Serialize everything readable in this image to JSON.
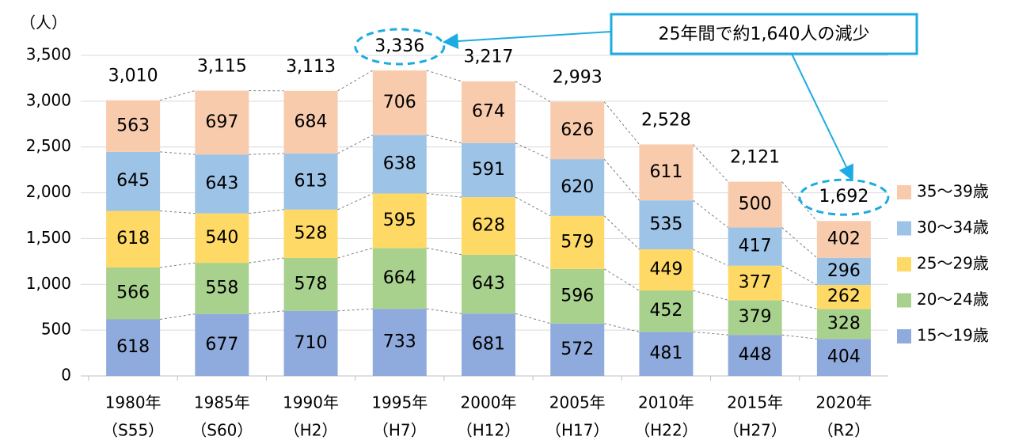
{
  "chart_data": {
    "type": "stacked_bar",
    "y_axis_label": "（人）",
    "annotation": "25年間で約1,640人の減少",
    "categories": [
      [
        "1980年",
        "（S55）"
      ],
      [
        "1985年",
        "（S60）"
      ],
      [
        "1990年",
        "（H2）"
      ],
      [
        "1995年",
        "（H7）"
      ],
      [
        "2000年",
        "（H12）"
      ],
      [
        "2005年",
        "（H17）"
      ],
      [
        "2010年",
        "（H22）"
      ],
      [
        "2015年",
        "（H27）"
      ],
      [
        "2020年",
        "（R2）"
      ]
    ],
    "series": [
      {
        "name": "15～19歳",
        "color": "#8faadc",
        "values": [
          618,
          677,
          710,
          733,
          681,
          572,
          481,
          448,
          404
        ]
      },
      {
        "name": "20～24歳",
        "color": "#a9d18e",
        "values": [
          566,
          558,
          578,
          664,
          643,
          596,
          452,
          379,
          328
        ]
      },
      {
        "name": "25～29歳",
        "color": "#ffd966",
        "values": [
          618,
          540,
          528,
          595,
          628,
          579,
          449,
          377,
          262
        ]
      },
      {
        "name": "30～34歳",
        "color": "#9dc3e6",
        "values": [
          645,
          643,
          613,
          638,
          591,
          620,
          535,
          417,
          296
        ]
      },
      {
        "name": "35～39歳",
        "color": "#f8cbad",
        "values": [
          563,
          697,
          684,
          706,
          674,
          626,
          611,
          500,
          402
        ]
      }
    ],
    "totals": {
      "values": [
        3010,
        3115,
        3113,
        3336,
        3217,
        2993,
        2528,
        2121,
        1692
      ],
      "value_labels": [
        "3,010",
        "3,115",
        "3,113",
        "3,336",
        "3,217",
        "2,993",
        "2,528",
        "2,121",
        "1,692"
      ]
    },
    "ylim": [
      0,
      3500
    ],
    "yticks": [
      0,
      500,
      {
        "value": 1000,
        "label": "1,000"
      },
      {
        "value": 1500,
        "label": "1,500"
      },
      {
        "value": 2000,
        "label": "2,000"
      },
      {
        "value": 2500,
        "label": "2,500"
      },
      {
        "value": 3000,
        "label": "3,000"
      },
      {
        "value": 3500,
        "label": "3,500"
      }
    ],
    "grid": true,
    "legend": "right"
  }
}
